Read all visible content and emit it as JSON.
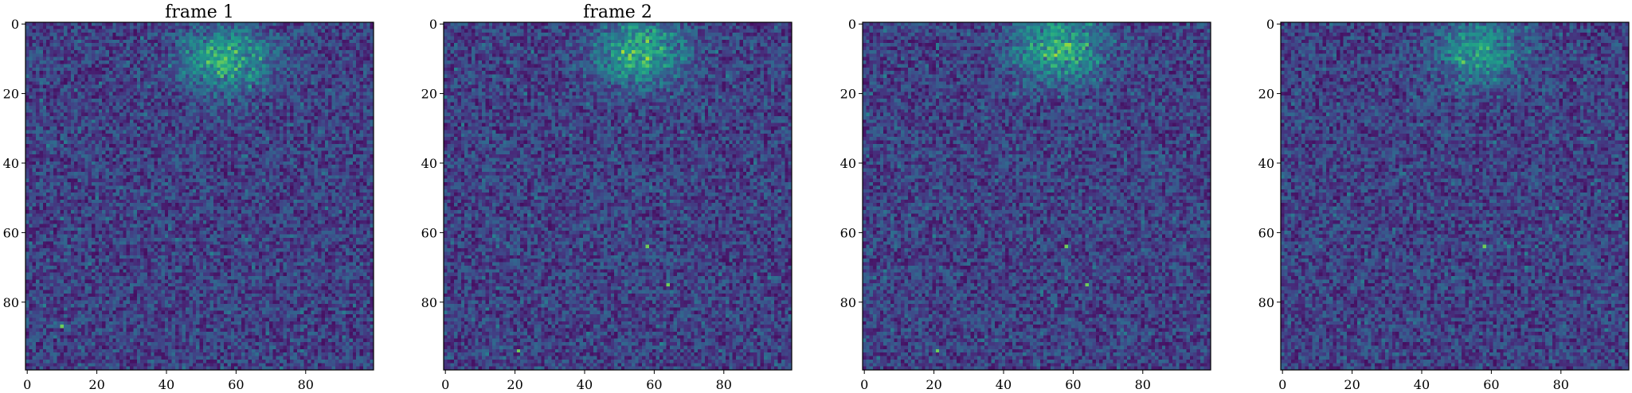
{
  "chart_data": [
    {
      "type": "heatmap",
      "title": "frame 1",
      "grid_size": [
        100,
        100
      ],
      "colormap": "viridis",
      "xticks": [
        0,
        20,
        40,
        60,
        80
      ],
      "yticks": [
        0,
        20,
        40,
        60,
        80
      ],
      "xlim": [
        0,
        99
      ],
      "ylim": [
        99,
        0
      ],
      "hotspot": {
        "row": 10,
        "col": 57,
        "strength": 0.55
      },
      "bright_pixels": [
        {
          "row": 11,
          "col": 52
        },
        {
          "row": 87,
          "col": 10
        }
      ],
      "seed": 11
    },
    {
      "type": "heatmap",
      "title": "frame 2",
      "grid_size": [
        100,
        100
      ],
      "colormap": "viridis",
      "xticks": [
        0,
        20,
        40,
        60,
        80
      ],
      "yticks": [
        0,
        20,
        40,
        60,
        80
      ],
      "xlim": [
        0,
        99
      ],
      "ylim": [
        99,
        0
      ],
      "hotspot": {
        "row": 8,
        "col": 56,
        "strength": 0.6
      },
      "bright_pixels": [
        {
          "row": 64,
          "col": 58
        },
        {
          "row": 75,
          "col": 64
        },
        {
          "row": 94,
          "col": 21
        }
      ],
      "seed": 23
    },
    {
      "type": "heatmap",
      "title": "",
      "grid_size": [
        100,
        100
      ],
      "colormap": "viridis",
      "xticks": [
        0,
        20,
        40,
        60,
        80
      ],
      "yticks": [
        0,
        20,
        40,
        60,
        80
      ],
      "xlim": [
        0,
        99
      ],
      "ylim": [
        99,
        0
      ],
      "hotspot": {
        "row": 7,
        "col": 56,
        "strength": 0.6
      },
      "bright_pixels": [
        {
          "row": 64,
          "col": 58
        },
        {
          "row": 75,
          "col": 64
        },
        {
          "row": 94,
          "col": 21
        }
      ],
      "seed": 37
    },
    {
      "type": "heatmap",
      "title": "",
      "grid_size": [
        100,
        100
      ],
      "colormap": "viridis",
      "xticks": [
        0,
        20,
        40,
        60,
        80
      ],
      "yticks": [
        0,
        20,
        40,
        60,
        80
      ],
      "xlim": [
        0,
        99
      ],
      "ylim": [
        99,
        0
      ],
      "hotspot": {
        "row": 8,
        "col": 56,
        "strength": 0.45
      },
      "bright_pixels": [
        {
          "row": 64,
          "col": 58
        },
        {
          "row": 11,
          "col": 52
        }
      ],
      "seed": 53
    }
  ]
}
